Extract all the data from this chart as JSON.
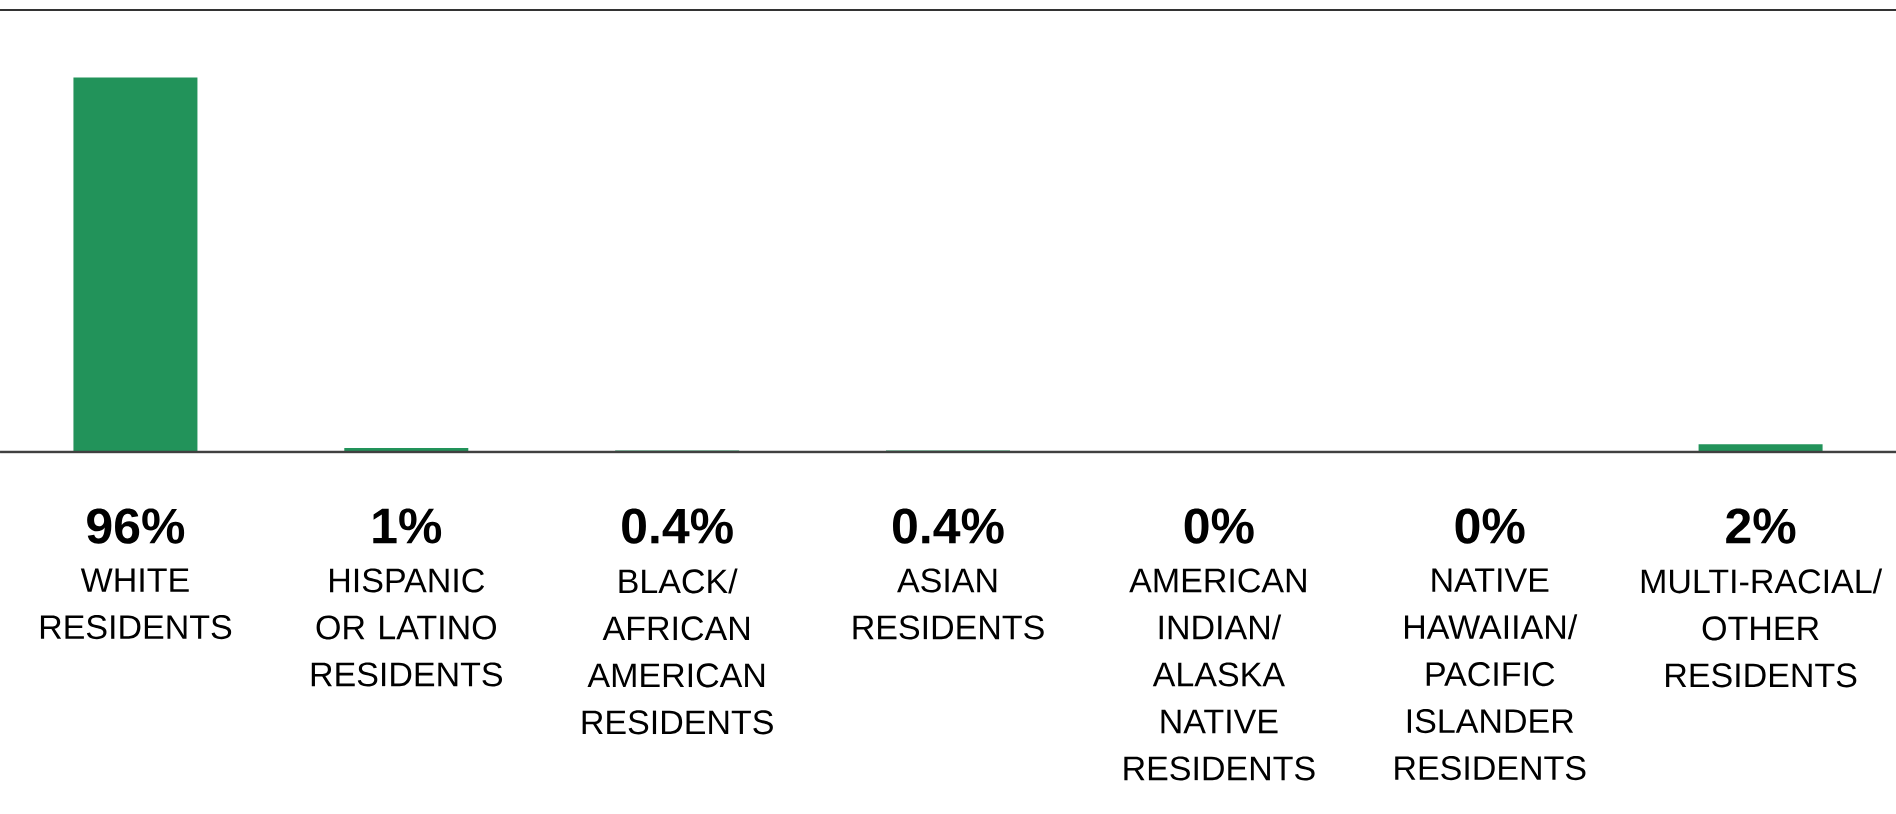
{
  "chart_data": {
    "type": "bar",
    "categories": [
      "WHITE RESIDENTS",
      "HISPANIC OR LATINO RESIDENTS",
      "BLACK/ AFRICAN AMERICAN RESIDENTS",
      "ASIAN RESIDENTS",
      "AMERICAN INDIAN/ ALASKA NATIVE RESIDENTS",
      "NATIVE HAWAIIAN/ PACIFIC ISLANDER RESIDENTS",
      "MULTI-RACIAL/ OTHER RESIDENTS"
    ],
    "values": [
      96,
      1,
      0.4,
      0.4,
      0,
      0,
      2
    ],
    "value_labels": [
      "96%",
      "1%",
      "0.4%",
      "0.4%",
      "0%",
      "0%",
      "2%"
    ],
    "color": "#22935a"
  }
}
